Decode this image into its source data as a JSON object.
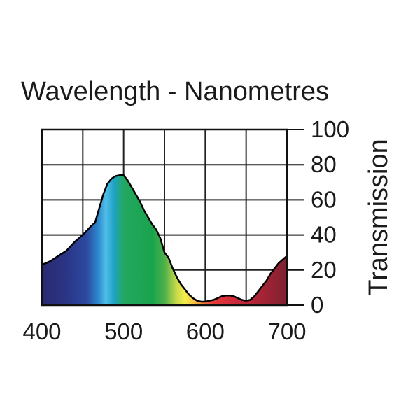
{
  "chart_data": {
    "type": "area",
    "title": "Wavelength - Nanometres",
    "xlabel": "Wavelength - Nanometres",
    "ylabel": "Transmission",
    "xlim": [
      400,
      700
    ],
    "ylim": [
      0,
      100
    ],
    "x_ticks": [
      400,
      500,
      600,
      700
    ],
    "y_ticks": [
      0,
      20,
      40,
      60,
      80,
      100
    ],
    "x_grid": [
      400,
      450,
      500,
      550,
      600,
      650,
      700
    ],
    "y_grid": [
      0,
      20,
      40,
      60,
      80,
      100
    ],
    "grid": true,
    "y_axis_side": "right",
    "series": [
      {
        "name": "Transmission",
        "x": [
          400,
          410,
          420,
          430,
          440,
          450,
          460,
          465,
          470,
          475,
          480,
          485,
          490,
          495,
          500,
          505,
          510,
          515,
          520,
          525,
          530,
          535,
          540,
          545,
          550,
          555,
          560,
          565,
          570,
          575,
          580,
          585,
          590,
          595,
          600,
          605,
          610,
          615,
          620,
          625,
          630,
          635,
          640,
          645,
          650,
          655,
          660,
          665,
          670,
          675,
          680,
          685,
          690,
          695,
          700
        ],
        "values": [
          23,
          25,
          28,
          31,
          36,
          40,
          45,
          47,
          55,
          63,
          69,
          72,
          73.5,
          74,
          74,
          71,
          67,
          63,
          59,
          54,
          50,
          46,
          43,
          38,
          30,
          27,
          21,
          16,
          12,
          9,
          6,
          4,
          2.5,
          2,
          2,
          2.5,
          3,
          4,
          5,
          5.5,
          5.5,
          5,
          4,
          3,
          2.5,
          3,
          5,
          8,
          11,
          14,
          18,
          21,
          24,
          26,
          28
        ]
      }
    ]
  },
  "colors": {
    "spectrum": [
      {
        "nm": 400,
        "color": "#2a2a72"
      },
      {
        "nm": 430,
        "color": "#2b3585"
      },
      {
        "nm": 455,
        "color": "#2b4aa0"
      },
      {
        "nm": 470,
        "color": "#2e8ed1"
      },
      {
        "nm": 478,
        "color": "#52bde8"
      },
      {
        "nm": 488,
        "color": "#1fa3c6"
      },
      {
        "nm": 500,
        "color": "#22a860"
      },
      {
        "nm": 535,
        "color": "#1aa34d"
      },
      {
        "nm": 550,
        "color": "#4cb04a"
      },
      {
        "nm": 565,
        "color": "#c9d94a"
      },
      {
        "nm": 575,
        "color": "#f4ee4a"
      },
      {
        "nm": 585,
        "color": "#f7c948"
      },
      {
        "nm": 595,
        "color": "#f28a3a"
      },
      {
        "nm": 610,
        "color": "#e63a3a"
      },
      {
        "nm": 640,
        "color": "#c8283a"
      },
      {
        "nm": 670,
        "color": "#a52335"
      },
      {
        "nm": 700,
        "color": "#7e2230"
      }
    ],
    "line": "#000000",
    "grid": "#222222",
    "text": "#1a1a1a"
  }
}
